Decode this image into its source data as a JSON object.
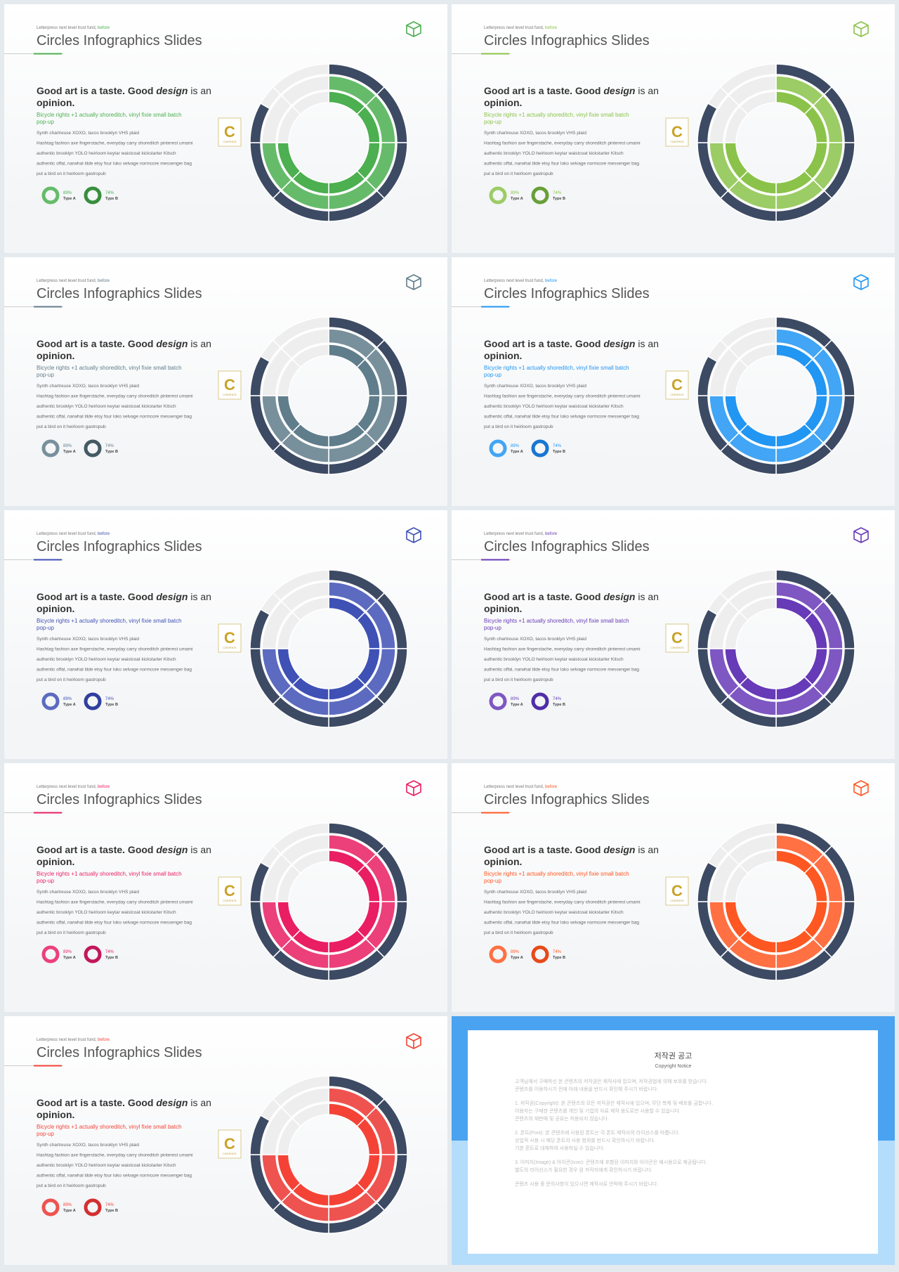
{
  "slide_text": {
    "kicker": "Letterpress next level trust fund,",
    "kicker_accent": " before",
    "title": "Circles Infographics Slides",
    "heading_a": "Good art is a taste. Good ",
    "heading_em": "design",
    "heading_b": " is an",
    "heading_2": "opinion.",
    "subtitle": [
      "Bicycle rights +1 actually shoreditch, vinyl fixie small batch",
      "pop-up"
    ],
    "body": [
      "Synth chartreuse XOXO, tacos brooklyn VHS plaid",
      "Hashtag fashion axe fingerstache, everyday carry shoreditch pinterest umami",
      "authentic brooklyn YOLO heirloom keytar waistcoat kickstarter Kitsch",
      "authentic offal, narwhal tilde etsy four loko selvage normcore messenger bag",
      "put a bird on it heirloom gastropub"
    ],
    "legend": [
      {
        "value": "89%",
        "label": "Type A"
      },
      {
        "value": "74%",
        "label": "Type B"
      }
    ],
    "logo": "C",
    "logo_sub": "CONTENTS"
  },
  "ring_color": "#3d4a63",
  "slides": [
    {
      "color": "#4caf50",
      "light": "#66bb6a",
      "dark": "#388e3c"
    },
    {
      "color": "#8bc34a",
      "light": "#9ccc65",
      "dark": "#689f38"
    },
    {
      "color": "#607d8b",
      "light": "#78909c",
      "dark": "#455a64"
    },
    {
      "color": "#2196f3",
      "light": "#42a5f5",
      "dark": "#1976d2"
    },
    {
      "color": "#3f51b5",
      "light": "#5c6bc0",
      "dark": "#303f9f"
    },
    {
      "color": "#673ab7",
      "light": "#7e57c2",
      "dark": "#512da8"
    },
    {
      "color": "#e91e63",
      "light": "#ec407a",
      "dark": "#c2185b"
    },
    {
      "color": "#ff5722",
      "light": "#ff7043",
      "dark": "#e64a19"
    },
    {
      "color": "#f44336",
      "light": "#ef5350",
      "dark": "#d32f2f"
    }
  ],
  "notice": {
    "title": "저작권 공고",
    "subtitle": "Copyright Notice",
    "paragraphs": [
      [
        "고객님께서 구매하신 본 콘텐츠의 저작권은 제작사에 있으며, 저작권법에 의해 보호를 받습니다.",
        "콘텐츠를 이용하시기 전에 아래 내용을 반드시 확인해 주시기 바랍니다."
      ],
      [
        "1. 저작권(Copyright): 본 콘텐츠의 모든 저작권은 제작사에 있으며, 무단 복제 및 배포를 금합니다.",
        "이용자는 구매한 콘텐츠를 개인 및 기업의 자료 제작 용도로만 사용할 수 있습니다.",
        "콘텐츠의 재판매 및 공유는 허용되지 않습니다."
      ],
      [
        "2. 폰트(Font): 본 콘텐츠에 사용된 폰트는 각 폰트 제작사의 라이선스를 따릅니다.",
        "상업적 사용 시 해당 폰트의 사용 범위를 반드시 확인하시기 바랍니다.",
        "기본 폰트로 대체하여 사용하실 수 있습니다."
      ],
      [
        "3. 이미지(Image) & 아이콘(Icon): 콘텐츠에 포함된 이미지와 아이콘은 예시용으로 제공됩니다.",
        "별도의 라이선스가 필요한 경우 원 저작자에게 확인하시기 바랍니다."
      ],
      [
        "콘텐츠 사용 중 문의사항이 있으시면 제작사로 연락해 주시기 바랍니다."
      ]
    ]
  }
}
